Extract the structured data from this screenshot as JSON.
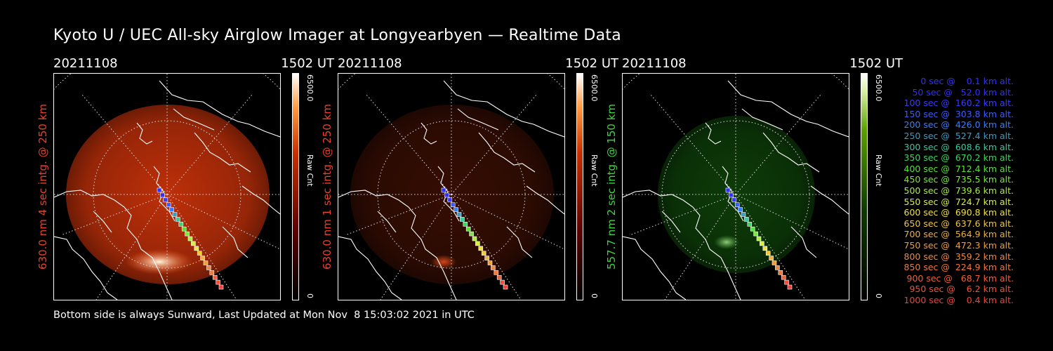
{
  "title": "Kyoto U / UEC All-sky Airglow Imager at Longyearbyen — Realtime Data",
  "footer": "Bottom side is always Sunward, Last Updated at Mon Nov  8 15:03:02 2021 in UTC",
  "panels": [
    {
      "date": "20211108",
      "time": "1502 UT",
      "ylabel": "630.0 nm 4 sec intg. @ 250 km",
      "label_color": "#e8412a",
      "cb_max": "6500.0",
      "cb_min": "0",
      "cb_unit": "Raw Cnt",
      "palette": "red",
      "intensity": 1.0
    },
    {
      "date": "20211108",
      "time": "1502 UT",
      "ylabel": "630.0 nm 1 sec intg. @ 250 km",
      "label_color": "#e8412a",
      "cb_max": "6500.0",
      "cb_min": "0",
      "cb_unit": "Raw Cnt",
      "palette": "red",
      "intensity": 0.28
    },
    {
      "date": "20211108",
      "time": "1502 UT",
      "ylabel": "557.7 nm 2 sec intg. @ 150 km",
      "label_color": "#3fd43f",
      "cb_max": "6500.0",
      "cb_min": "0",
      "cb_unit": "Raw Cnt",
      "palette": "green",
      "intensity": 0.45
    }
  ],
  "legend": [
    {
      "text": "   0 sec @    0.1 km alt.",
      "color": "#3030ff"
    },
    {
      "text": "  50 sec @   52.0 km alt.",
      "color": "#3030ff"
    },
    {
      "text": " 100 sec @  160.2 km alt.",
      "color": "#3a3aff"
    },
    {
      "text": " 150 sec @  303.8 km alt.",
      "color": "#3a5cff"
    },
    {
      "text": " 200 sec @  426.0 km alt.",
      "color": "#3a7cff"
    },
    {
      "text": " 250 sec @  527.4 km alt.",
      "color": "#3a9cc8"
    },
    {
      "text": " 300 sec @  608.6 km alt.",
      "color": "#3ac8a0"
    },
    {
      "text": " 350 sec @  670.2 km alt.",
      "color": "#3ad860"
    },
    {
      "text": " 400 sec @  712.4 km alt.",
      "color": "#5ae03a"
    },
    {
      "text": " 450 sec @  735.5 km alt.",
      "color": "#7ae83a"
    },
    {
      "text": " 500 sec @  739.6 km alt.",
      "color": "#a8f03a"
    },
    {
      "text": " 550 sec @  724.7 km alt.",
      "color": "#d8f03a"
    },
    {
      "text": " 600 sec @  690.8 km alt.",
      "color": "#f0e03a"
    },
    {
      "text": " 650 sec @  637.6 km alt.",
      "color": "#f0c83a"
    },
    {
      "text": " 700 sec @  564.9 km alt.",
      "color": "#f0b03a"
    },
    {
      "text": " 750 sec @  472.3 km alt.",
      "color": "#f09c3a"
    },
    {
      "text": " 800 sec @  359.2 km alt.",
      "color": "#f0883a"
    },
    {
      "text": " 850 sec @  224.9 km alt.",
      "color": "#f0783a"
    },
    {
      "text": " 900 sec @   68.7 km alt.",
      "color": "#f0603a"
    },
    {
      "text": " 950 sec @    6.2 km alt.",
      "color": "#f0503a"
    },
    {
      "text": "1000 sec @    0.4 km alt.",
      "color": "#f0403a"
    }
  ]
}
